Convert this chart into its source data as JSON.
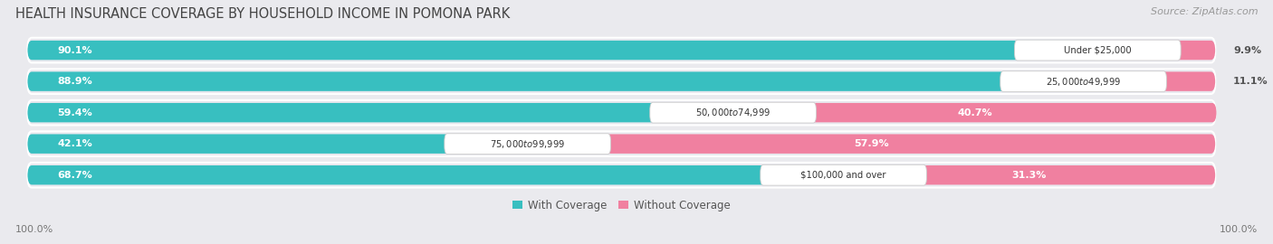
{
  "title": "HEALTH INSURANCE COVERAGE BY HOUSEHOLD INCOME IN POMONA PARK",
  "source": "Source: ZipAtlas.com",
  "categories": [
    "Under $25,000",
    "$25,000 to $49,999",
    "$50,000 to $74,999",
    "$75,000 to $99,999",
    "$100,000 and over"
  ],
  "with_coverage": [
    90.1,
    88.9,
    59.4,
    42.1,
    68.7
  ],
  "without_coverage": [
    9.9,
    11.1,
    40.7,
    57.9,
    31.3
  ],
  "color_with": "#38bfc0",
  "color_without": "#f080a0",
  "color_with_light": "#a0dede",
  "bg_color": "#eaeaee",
  "bar_bg": "#dddde8",
  "row_bg": "#e8e8ee",
  "label_left_pct": "100.0%",
  "label_right_pct": "100.0%",
  "legend_with": "With Coverage",
  "legend_without": "Without Coverage",
  "title_fontsize": 10.5,
  "source_fontsize": 8,
  "figsize": [
    14.06,
    2.7
  ]
}
